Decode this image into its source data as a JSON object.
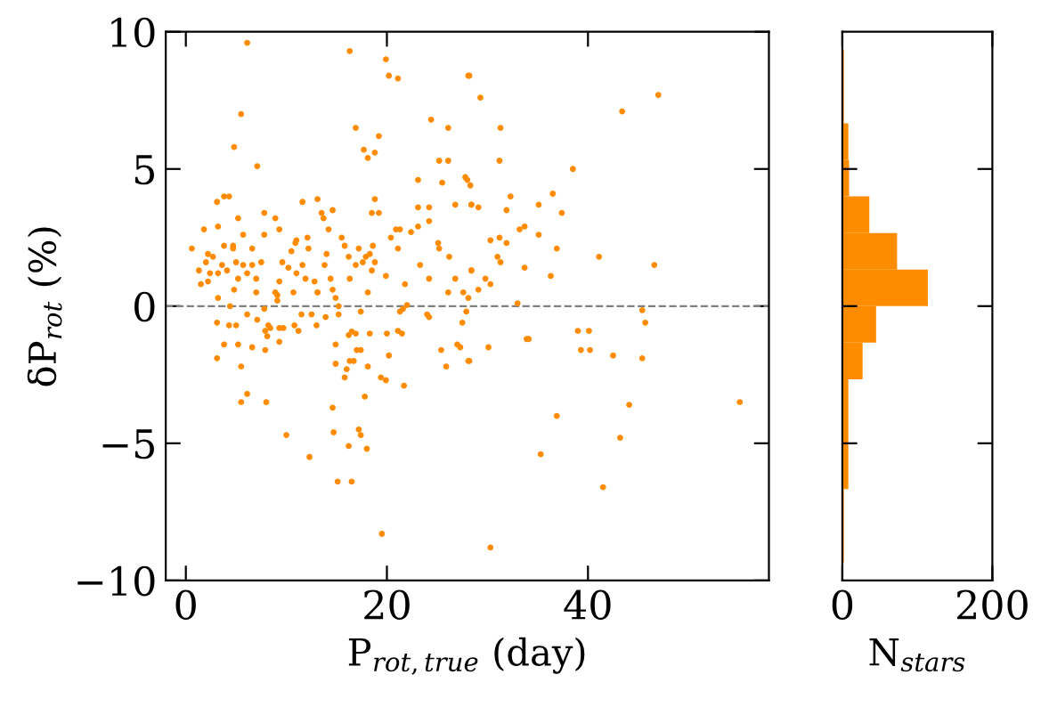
{
  "chart_data": [
    {
      "type": "scatter",
      "xlabel": "P$_{rot,true}$ (day)",
      "ylabel": "δP$_{rot}$ (%)",
      "color": "#ff8c00",
      "marker": "circle",
      "x": [
        6.1,
        16.3,
        19.9,
        20.2,
        21.1,
        28.1,
        5.5,
        16.9,
        19.2,
        4.8,
        17.7,
        18.1,
        18.8,
        7.1,
        24.4,
        26.1,
        25.2,
        26.1,
        23.1,
        25.5,
        27.8,
        28.2,
        29.3,
        31.3,
        31.2,
        47,
        43.4,
        38.5,
        28.0,
        28.3,
        32.3,
        36.5,
        28.4,
        29.1,
        31.9,
        35.1,
        37.4,
        33.2,
        33.7,
        35.1,
        30.3,
        31.2,
        31.9,
        36.9,
        31.0,
        31.3,
        41.1,
        46.6,
        28.4,
        29.8,
        30.3,
        29.1,
        33.7,
        36.3,
        28.1,
        33.0,
        45.4,
        45.7,
        39.0,
        40.1,
        39.3,
        40.2,
        42.5,
        45.4,
        33.9,
        34.1,
        30.1,
        28.1,
        55.1,
        44.1,
        36.9,
        43.2,
        35.3,
        41.5,
        30.3,
        3.1,
        4.3,
        5.0,
        3.8,
        5.2,
        3.1,
        5.5,
        6.1,
        5.5,
        6.1,
        7.1,
        8.0,
        6.6,
        7.9,
        8.2,
        8.4,
        8.1,
        7.9,
        9.3,
        9.7,
        9.3,
        10.0,
        10.8,
        11.2,
        11.5,
        12.3,
        12.5,
        13.0,
        13.9,
        14.6,
        14.7,
        15.1,
        16.5,
        14.9,
        14.9,
        15.2,
        15.2,
        15.8,
        16.0,
        16.2,
        16.3,
        16.5,
        16.9,
        16.7,
        17.0,
        17.4,
        17.4,
        17.2,
        16.2,
        17.8,
        18.0,
        18.1,
        17.4,
        18.3,
        19.4,
        19.9,
        19.5,
        20.2,
        20.0,
        21.1,
        21.5,
        21.3,
        22.0,
        21.6,
        21.7,
        24.0,
        24.2,
        25.4,
        25.9,
        27.0,
        27.3,
        27.5,
        27.9,
        28.2,
        3.1,
        3.8,
        4.3,
        1.8,
        3.2,
        0.6,
        5.2,
        7.8,
        8.9,
        9.3,
        11.6,
        13.1,
        13.5,
        13.7,
        14.6,
        7.8,
        5.7,
        4.7,
        4.7,
        6.6,
        3.8,
        2.2,
        2.7,
        2.0,
        1.3,
        1.5,
        2.2,
        2.4,
        3.2,
        3.6,
        4.1,
        5.0,
        5.2,
        5.7,
        6.1,
        6.6,
        7.0,
        7.5,
        7.0,
        4.8,
        3.2,
        4.4,
        9.3,
        9.6,
        9.1,
        9.1,
        10.2,
        10.7,
        11.0,
        10.9,
        11.0,
        10.5,
        11.6,
        11.9,
        12.1,
        12.2,
        12.8,
        13.1,
        13.8,
        14.0,
        14.2,
        14.4,
        14.6,
        14.9,
        15.5,
        15.8,
        16.2,
        16.3,
        16.9,
        17.2,
        17.6,
        17.9,
        18.3,
        18.5,
        18.6,
        18.8,
        18.1,
        19.9,
        20.4,
        20.9,
        21.3,
        21.1,
        21.8,
        22.4,
        23.1,
        23.3,
        24.2,
        25.1,
        25.2,
        26.2,
        26.8,
        26.1,
        27.6,
        28.4,
        24.2,
        23.1,
        24.2,
        26.8,
        28.4,
        18.8,
        18.5,
        19.2,
        13.1,
        8.9,
        7.8
      ],
      "values": [
        9.6,
        9.3,
        9.0,
        8.4,
        8.3,
        8.4,
        7.0,
        6.5,
        6.2,
        5.8,
        5.7,
        5.4,
        5.6,
        5.1,
        6.8,
        6.5,
        5.3,
        5.3,
        4.6,
        4.5,
        4.7,
        8.4,
        7.6,
        6.5,
        5.3,
        7.7,
        7.1,
        5.0,
        4.6,
        4.4,
        4.0,
        4.1,
        3.7,
        3.6,
        3.5,
        3.7,
        3.4,
        2.8,
        2.9,
        2.6,
        2.4,
        2.5,
        2.3,
        2.1,
        1.8,
        1.6,
        1.8,
        1.5,
        1.3,
        1.0,
        0.8,
        0.6,
        1.4,
        1.1,
        0.3,
        0.1,
        -0.15,
        -0.6,
        -0.9,
        -0.9,
        -1.6,
        -1.6,
        -1.8,
        -1.9,
        -1.2,
        -1.2,
        -1.5,
        -2.0,
        -3.5,
        -3.6,
        -4.0,
        -4.8,
        -5.4,
        -6.6,
        -8.8,
        -0.6,
        -0.7,
        -0.7,
        -1.4,
        -1.4,
        -1.9,
        -2.2,
        -3.2,
        -3.5,
        -0.3,
        -0.5,
        -3.5,
        -1.5,
        -0.9,
        -0.7,
        -0.8,
        -1.1,
        -1.6,
        -0.8,
        -0.8,
        -1.3,
        -4.7,
        -0.7,
        -0.9,
        -0.3,
        -5.5,
        -0.3,
        -0.7,
        -0.4,
        -3.7,
        -4.6,
        -6.4,
        -6.4,
        -1.4,
        -2.1,
        -0.3,
        0.0,
        -2.6,
        -2.3,
        -1.06,
        -2.0,
        -0.93,
        -1.0,
        -2.0,
        -1.6,
        -1.6,
        -4.7,
        -4.5,
        -5.1,
        -3.3,
        -5.2,
        -2.2,
        -0.2,
        -1.0,
        -2.6,
        -2.7,
        -8.3,
        -1.8,
        -1.0,
        -0.9,
        -1.0,
        -0.2,
        0.04,
        -0.1,
        -2.9,
        -0.3,
        -0.4,
        -1.6,
        -2.2,
        -1.4,
        -1.5,
        -0.6,
        -0.2,
        -2.0,
        3.8,
        4.0,
        4.0,
        2.8,
        2.9,
        2.1,
        3.2,
        3.4,
        3.2,
        2.8,
        3.8,
        3.9,
        3.4,
        3.2,
        3.5,
        2.6,
        2.6,
        2.2,
        2.1,
        2.1,
        2.2,
        1.9,
        1.8,
        1.6,
        1.3,
        0.8,
        0.9,
        1.2,
        1.2,
        1.5,
        1.3,
        1.6,
        1.0,
        1.5,
        1.2,
        1.5,
        1.0,
        1.6,
        0.5,
        0.6,
        0.3,
        0.0,
        0.9,
        1.6,
        0.4,
        0.2,
        1.4,
        0.5,
        1.2,
        2.3,
        2.4,
        2.0,
        1.5,
        1.0,
        2.5,
        2.1,
        0.9,
        0.5,
        1.5,
        1.9,
        2.8,
        1.0,
        0.6,
        0.3,
        2.5,
        2.2,
        1.8,
        1.0,
        1.5,
        2.1,
        1.6,
        1.8,
        1.9,
        1.3,
        2.2,
        1.6,
        0.5,
        1.1,
        2.5,
        2.8,
        2.8,
        2.1,
        0.8,
        2.7,
        2.9,
        1.5,
        1.0,
        2.3,
        2.1,
        1.8,
        1.0,
        0.5,
        0.5,
        1.3,
        3.1,
        3.6,
        3.6,
        3.7,
        3.7,
        3.9,
        3.4,
        3.4,
        0.5,
        0.5,
        -0.1
      ],
      "xlim": [
        -2,
        58
      ],
      "ylim": [
        -10,
        10
      ],
      "xticks": [
        0,
        20,
        40
      ],
      "yticks": [
        {
          "value": -10,
          "label": "−10"
        },
        {
          "value": -5,
          "label": "−5"
        },
        0,
        5,
        10
      ],
      "ref_lines": [
        {
          "axis": "y",
          "value": 0,
          "color": "#808080",
          "line_style": "dashed"
        }
      ]
    },
    {
      "type": "histogram",
      "orientation": "horizontal",
      "xlabel": "N$_{stars}$",
      "color": "#ff8c00",
      "bins": [
        -9.333,
        -8,
        -6.667,
        -5.333,
        -4,
        -2.667,
        -1.333,
        0,
        1.333,
        2.667,
        4,
        5.333,
        6.667,
        8,
        9.333
      ],
      "values": [
        2,
        2,
        8,
        8,
        8,
        27,
        45,
        114,
        73,
        36,
        9,
        8,
        2,
        2
      ],
      "xlim": [
        0,
        200
      ],
      "xticks": [
        0,
        200
      ],
      "ylim": [
        -10,
        10
      ],
      "yticks": [
        {
          "value": -5,
          "label": null
        },
        {
          "value": 0,
          "label": null
        },
        {
          "value": 5,
          "label": null
        }
      ],
      "tick_labels": "x"
    }
  ]
}
